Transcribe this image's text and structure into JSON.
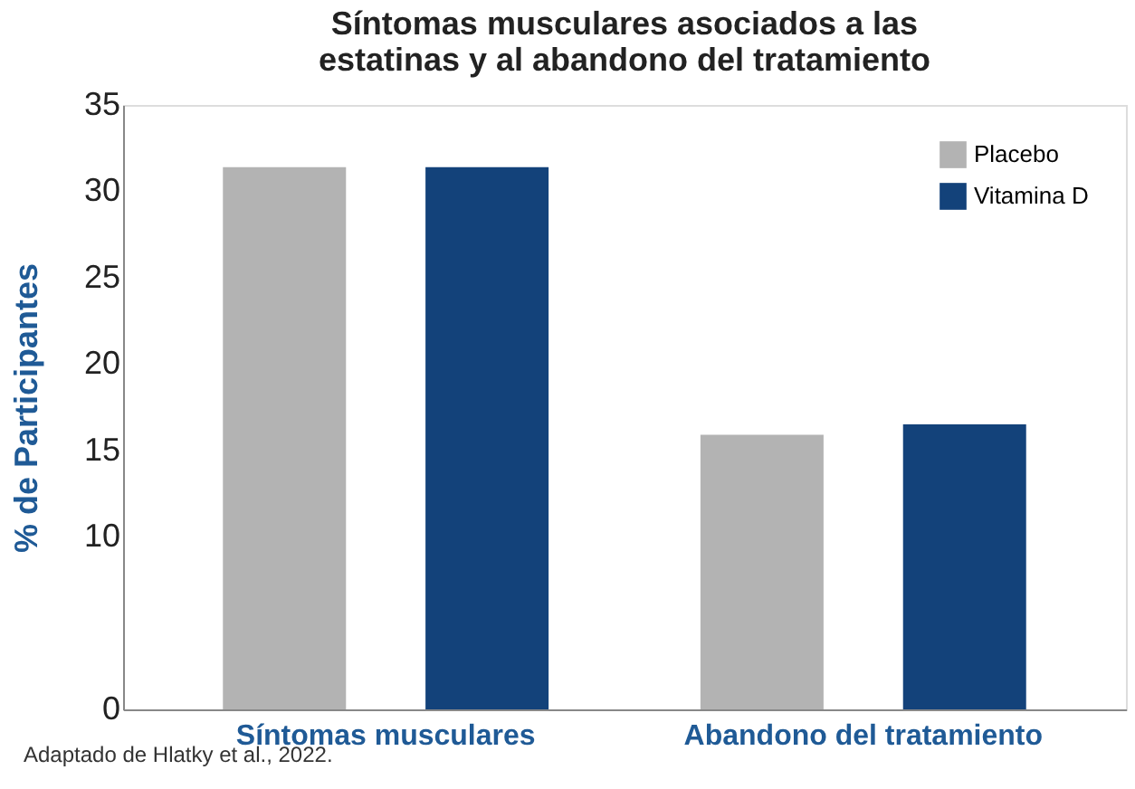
{
  "chart_data": {
    "type": "bar",
    "title": "Síntomas musculares asociados a las estatinas y al abandono del tratamiento",
    "ylabel": "% de Participantes",
    "categories": [
      "Síntomas musculares",
      "Abandono del tratamiento"
    ],
    "series": [
      {
        "name": "Placebo",
        "color": "#b3b3b3",
        "values": [
          31.4,
          15.9
        ]
      },
      {
        "name": "Vitamina D",
        "color": "#13427a",
        "values": [
          31.4,
          16.5
        ]
      }
    ],
    "ylim": [
      0,
      35
    ],
    "yticks": [
      0,
      10,
      15,
      20,
      25,
      30,
      35
    ],
    "grid": false,
    "legend": "top right",
    "annotations": [
      "Adaptado de Hlatky et al., 2022."
    ]
  }
}
